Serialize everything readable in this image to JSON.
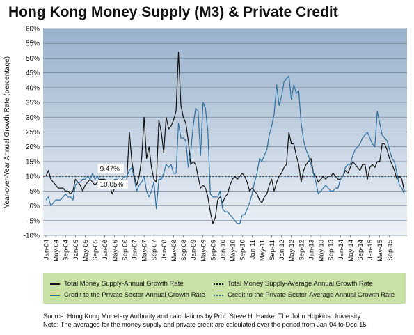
{
  "title": "Hong Kong Money Supply (M3) & Private Credit",
  "chart_data": {
    "type": "line",
    "title": "Hong Kong Money Supply (M3) & Private Credit",
    "ylabel": "Year-over-Year Annual Growth Rate (percentage)",
    "xlabel": "",
    "ylim": [
      -10,
      60
    ],
    "yticks": [
      -10,
      -5,
      0,
      5,
      10,
      15,
      20,
      25,
      30,
      35,
      40,
      45,
      50,
      55,
      60
    ],
    "ytick_labels": [
      "-10%",
      "-5%",
      "0%",
      "5%",
      "10%",
      "15%",
      "20%",
      "25%",
      "30%",
      "35%",
      "40%",
      "45%",
      "50%",
      "55%",
      "60%"
    ],
    "xlim": [
      0,
      146
    ],
    "xtick_labels": [
      "Jan-04",
      "May-04",
      "Sep-04",
      "Jan-05",
      "May-05",
      "Sep-05",
      "Jan-06",
      "May-06",
      "Sep-06",
      "Jan-07",
      "May-07",
      "Sep-07",
      "Jan-08",
      "May-08",
      "Sep-08",
      "Jan-09",
      "May-09",
      "Sep-09",
      "Jan-10",
      "May-10",
      "Sep-10",
      "Jan-11",
      "May-11",
      "Sep-11",
      "Jan-12",
      "May-12",
      "Sep-12",
      "Jan-13",
      "May-13",
      "Sep-13",
      "Jan-14",
      "May-14",
      "Sep-14",
      "Jan-15",
      "May-15",
      "Sep-15"
    ],
    "grid": true,
    "series": [
      {
        "name": "Total Money Supply-Annual Growth Rate",
        "color": "#111111",
        "points": [
          [
            0,
            10
          ],
          [
            1,
            12
          ],
          [
            2,
            9
          ],
          [
            3,
            8
          ],
          [
            4,
            7
          ],
          [
            5,
            6
          ],
          [
            6,
            6
          ],
          [
            7,
            6
          ],
          [
            8,
            5
          ],
          [
            9,
            5
          ],
          [
            10,
            4
          ],
          [
            11,
            5
          ],
          [
            12,
            9
          ],
          [
            13,
            8
          ],
          [
            14,
            7
          ],
          [
            15,
            5
          ],
          [
            16,
            7
          ],
          [
            17,
            8
          ],
          [
            18,
            9
          ],
          [
            19,
            8
          ],
          [
            20,
            7
          ],
          [
            21,
            8
          ],
          [
            22,
            9
          ],
          [
            23,
            9
          ],
          [
            24,
            9
          ],
          [
            25,
            8
          ],
          [
            26,
            7
          ],
          [
            27,
            4
          ],
          [
            28,
            6
          ],
          [
            29,
            7
          ],
          [
            30,
            8
          ],
          [
            31,
            9
          ],
          [
            32,
            8
          ],
          [
            33,
            9
          ],
          [
            34,
            25
          ],
          [
            35,
            15
          ],
          [
            36,
            10
          ],
          [
            37,
            7
          ],
          [
            38,
            10
          ],
          [
            39,
            16
          ],
          [
            40,
            30
          ],
          [
            41,
            16
          ],
          [
            42,
            20
          ],
          [
            43,
            13
          ],
          [
            44,
            9
          ],
          [
            45,
            8
          ],
          [
            46,
            29
          ],
          [
            47,
            25
          ],
          [
            48,
            18
          ],
          [
            49,
            30
          ],
          [
            50,
            26
          ],
          [
            51,
            27
          ],
          [
            52,
            29
          ],
          [
            53,
            32
          ],
          [
            54,
            52
          ],
          [
            55,
            34
          ],
          [
            56,
            30
          ],
          [
            57,
            28
          ],
          [
            58,
            22
          ],
          [
            59,
            14
          ],
          [
            60,
            15
          ],
          [
            61,
            14
          ],
          [
            62,
            10
          ],
          [
            63,
            6
          ],
          [
            64,
            7
          ],
          [
            65,
            6
          ],
          [
            66,
            3
          ],
          [
            67,
            -2
          ],
          [
            68,
            -6
          ],
          [
            69,
            -4
          ],
          [
            70,
            2
          ],
          [
            71,
            3
          ],
          [
            72,
            1
          ],
          [
            73,
            3
          ],
          [
            74,
            4
          ],
          [
            75,
            7
          ],
          [
            76,
            9
          ],
          [
            77,
            10
          ],
          [
            78,
            9
          ],
          [
            79,
            10
          ],
          [
            80,
            11
          ],
          [
            81,
            10
          ],
          [
            82,
            8
          ],
          [
            83,
            5
          ],
          [
            84,
            6
          ],
          [
            85,
            5
          ],
          [
            86,
            4
          ],
          [
            87,
            2
          ],
          [
            88,
            1
          ],
          [
            89,
            3
          ],
          [
            90,
            4
          ],
          [
            91,
            7
          ],
          [
            92,
            9
          ],
          [
            93,
            5
          ],
          [
            94,
            8
          ],
          [
            95,
            10
          ],
          [
            96,
            11
          ],
          [
            97,
            13
          ],
          [
            98,
            14
          ],
          [
            99,
            25
          ],
          [
            100,
            21
          ],
          [
            101,
            21
          ],
          [
            102,
            17
          ],
          [
            103,
            14
          ],
          [
            104,
            8
          ],
          [
            105,
            12
          ],
          [
            106,
            14
          ],
          [
            107,
            15
          ],
          [
            108,
            16
          ],
          [
            109,
            11
          ],
          [
            110,
            10
          ],
          [
            111,
            8
          ],
          [
            112,
            9
          ],
          [
            113,
            10
          ],
          [
            114,
            9
          ],
          [
            115,
            10
          ],
          [
            116,
            10
          ],
          [
            117,
            11
          ],
          [
            118,
            10
          ],
          [
            119,
            9
          ],
          [
            120,
            9
          ],
          [
            121,
            10
          ],
          [
            122,
            12
          ],
          [
            123,
            11
          ],
          [
            124,
            13
          ],
          [
            125,
            15
          ],
          [
            126,
            14
          ],
          [
            127,
            13
          ],
          [
            128,
            12
          ],
          [
            129,
            14
          ],
          [
            130,
            14
          ],
          [
            131,
            9
          ],
          [
            132,
            13
          ],
          [
            133,
            14
          ],
          [
            134,
            13
          ],
          [
            135,
            15
          ],
          [
            136,
            15
          ],
          [
            137,
            21
          ],
          [
            138,
            21
          ],
          [
            139,
            19
          ],
          [
            140,
            16
          ],
          [
            141,
            14
          ],
          [
            142,
            12
          ],
          [
            143,
            9
          ],
          [
            144,
            10
          ],
          [
            145,
            9
          ],
          [
            146,
            5
          ]
        ]
      },
      {
        "name": "Credit to the Private Sector-Annual Growth Rate",
        "color": "#2f6f9f",
        "points": [
          [
            0,
            2
          ],
          [
            1,
            3
          ],
          [
            2,
            0
          ],
          [
            3,
            1
          ],
          [
            4,
            2
          ],
          [
            5,
            2
          ],
          [
            6,
            2
          ],
          [
            7,
            3
          ],
          [
            8,
            4
          ],
          [
            9,
            3
          ],
          [
            10,
            3
          ],
          [
            11,
            2
          ],
          [
            12,
            7
          ],
          [
            13,
            8
          ],
          [
            14,
            8
          ],
          [
            15,
            9
          ],
          [
            16,
            9
          ],
          [
            17,
            10
          ],
          [
            18,
            9
          ],
          [
            19,
            11
          ],
          [
            20,
            9
          ],
          [
            21,
            10
          ],
          [
            22,
            8
          ],
          [
            23,
            8
          ],
          [
            24,
            6
          ],
          [
            25,
            7
          ],
          [
            26,
            7
          ],
          [
            27,
            8
          ],
          [
            28,
            9
          ],
          [
            29,
            9
          ],
          [
            30,
            8
          ],
          [
            31,
            9
          ],
          [
            32,
            10
          ],
          [
            33,
            10
          ],
          [
            34,
            12
          ],
          [
            35,
            13
          ],
          [
            36,
            9
          ],
          [
            37,
            5
          ],
          [
            38,
            7
          ],
          [
            39,
            8
          ],
          [
            40,
            10
          ],
          [
            41,
            5
          ],
          [
            42,
            3
          ],
          [
            43,
            5
          ],
          [
            44,
            8
          ],
          [
            45,
            -1
          ],
          [
            46,
            9
          ],
          [
            47,
            9
          ],
          [
            48,
            11
          ],
          [
            49,
            14
          ],
          [
            50,
            13
          ],
          [
            51,
            14
          ],
          [
            52,
            11
          ],
          [
            53,
            11
          ],
          [
            54,
            28
          ],
          [
            55,
            23
          ],
          [
            56,
            23
          ],
          [
            57,
            22
          ],
          [
            58,
            13
          ],
          [
            59,
            18
          ],
          [
            60,
            27
          ],
          [
            61,
            33
          ],
          [
            62,
            32
          ],
          [
            63,
            17
          ],
          [
            64,
            35
          ],
          [
            65,
            33
          ],
          [
            66,
            25
          ],
          [
            67,
            4
          ],
          [
            68,
            3
          ],
          [
            69,
            3
          ],
          [
            70,
            3
          ],
          [
            71,
            5
          ],
          [
            72,
            -1
          ],
          [
            73,
            -2
          ],
          [
            74,
            -2
          ],
          [
            75,
            -3
          ],
          [
            76,
            -4
          ],
          [
            77,
            -5
          ],
          [
            78,
            -6
          ],
          [
            79,
            -6
          ],
          [
            80,
            -3
          ],
          [
            81,
            -3
          ],
          [
            82,
            -1
          ],
          [
            83,
            1
          ],
          [
            84,
            4
          ],
          [
            85,
            8
          ],
          [
            86,
            11
          ],
          [
            87,
            16
          ],
          [
            88,
            15
          ],
          [
            89,
            17
          ],
          [
            90,
            19
          ],
          [
            91,
            24
          ],
          [
            92,
            27
          ],
          [
            93,
            31
          ],
          [
            94,
            41
          ],
          [
            95,
            34
          ],
          [
            96,
            37
          ],
          [
            97,
            42
          ],
          [
            98,
            43
          ],
          [
            99,
            44
          ],
          [
            100,
            36
          ],
          [
            101,
            41
          ],
          [
            102,
            38
          ],
          [
            103,
            39
          ],
          [
            104,
            28
          ],
          [
            105,
            22
          ],
          [
            106,
            19
          ],
          [
            107,
            17
          ],
          [
            108,
            14
          ],
          [
            109,
            11
          ],
          [
            110,
            8
          ],
          [
            111,
            4
          ],
          [
            112,
            5
          ],
          [
            113,
            6
          ],
          [
            114,
            7
          ],
          [
            115,
            6
          ],
          [
            116,
            5
          ],
          [
            117,
            5
          ],
          [
            118,
            6
          ],
          [
            119,
            6
          ],
          [
            120,
            9
          ],
          [
            121,
            10
          ],
          [
            122,
            13
          ],
          [
            123,
            14
          ],
          [
            124,
            14
          ],
          [
            125,
            17
          ],
          [
            126,
            19
          ],
          [
            127,
            20
          ],
          [
            128,
            21
          ],
          [
            129,
            23
          ],
          [
            130,
            24
          ],
          [
            131,
            25
          ],
          [
            132,
            23
          ],
          [
            133,
            21
          ],
          [
            134,
            20
          ],
          [
            135,
            32
          ],
          [
            136,
            28
          ],
          [
            137,
            24
          ],
          [
            138,
            23
          ],
          [
            139,
            22
          ],
          [
            140,
            19
          ],
          [
            141,
            16
          ],
          [
            142,
            15
          ],
          [
            143,
            11
          ],
          [
            144,
            7
          ],
          [
            145,
            6
          ],
          [
            146,
            4
          ]
        ]
      }
    ],
    "averages": [
      {
        "name": "Total Money Supply-Average Annual Growth Rate",
        "value": 10.05,
        "label": "10.05%",
        "color": "#111111"
      },
      {
        "name": "Credit to the Private Sector-Average Annual Growth Rate",
        "value": 9.47,
        "label": "9.47%",
        "color": "#2f6f9f"
      }
    ]
  },
  "legend": {
    "items": [
      {
        "label": "Total Money Supply-Annual Growth Rate",
        "style": "solid",
        "color": "#111111"
      },
      {
        "label": "Total Money Supply-Average Annual Growth Rate",
        "style": "dotted",
        "color": "#111111"
      },
      {
        "label": "Credit to the Private Sector-Annual Growth Rate",
        "style": "solid",
        "color": "#2f6f9f"
      },
      {
        "label": "Credit to the Private Sector-Average Annual Growth Rate",
        "style": "dotted",
        "color": "#2f6f9f"
      }
    ]
  },
  "source": {
    "line1": "Source: Hong Kong Monetary Authority and calculations by Prof. Steve H. Hanke, The John Hopkins University.",
    "line2": "Note: The averages for the money supply and private credit are calculated over the period from Jan-04 to Dec-15."
  },
  "colors": {
    "plot_top": "#9bb3cc",
    "plot_bottom": "#eef2f7",
    "legend_bg": "#c8e2a6",
    "series_black": "#111111",
    "series_blue": "#2f6f9f"
  }
}
